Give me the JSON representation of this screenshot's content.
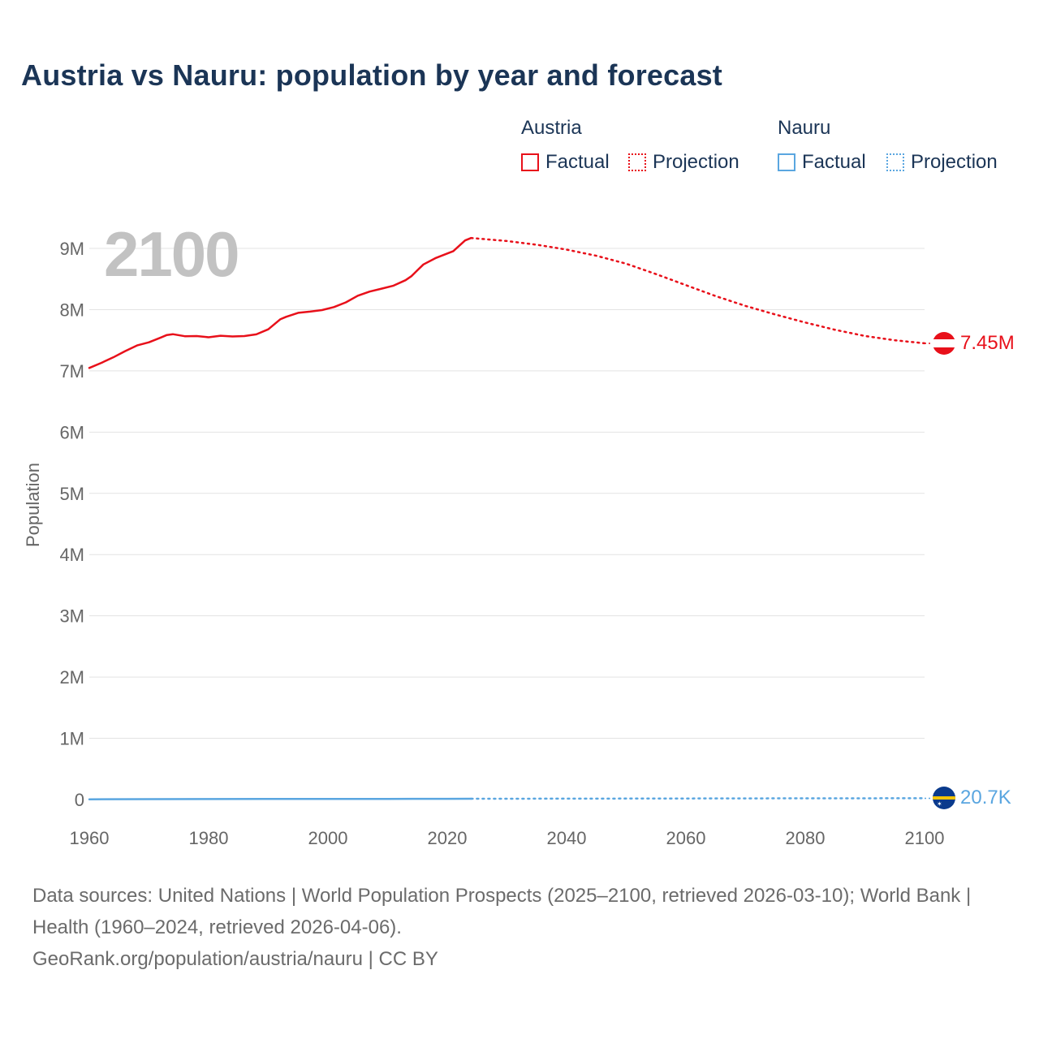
{
  "title": "Austria vs Nauru: population by year and forecast",
  "current_year": "2100",
  "legend": {
    "groups": [
      {
        "name": "Austria",
        "color": "#e8101a",
        "factual_label": "Factual",
        "projection_label": "Projection"
      },
      {
        "name": "Nauru",
        "color": "#5aa6e0",
        "factual_label": "Factual",
        "projection_label": "Projection"
      }
    ]
  },
  "footer": {
    "sources": "Data sources: United Nations | World Population Prospects (2025–2100, retrieved 2026-03-10); World Bank | Health (1960–2024, retrieved 2026-04-06).",
    "attribution": "GeoRank.org/population/austria/nauru | CC BY"
  },
  "chart_data": {
    "type": "line",
    "title": "Austria vs Nauru: population by year and forecast",
    "xlabel": "",
    "ylabel": "Population",
    "xlim": [
      1960,
      2100
    ],
    "ylim": [
      0,
      9500000
    ],
    "x_ticks": [
      1960,
      1980,
      2000,
      2020,
      2040,
      2060,
      2080,
      2100
    ],
    "x_tick_labels": [
      "1960",
      "1980",
      "2000",
      "2020",
      "2040",
      "2060",
      "2080",
      "2100"
    ],
    "y_ticks": [
      0,
      1000000,
      2000000,
      3000000,
      4000000,
      5000000,
      6000000,
      7000000,
      8000000,
      9000000
    ],
    "y_tick_labels": [
      "0",
      "1M",
      "2M",
      "3M",
      "4M",
      "5M",
      "6M",
      "7M",
      "8M",
      "9M"
    ],
    "grid": true,
    "series": [
      {
        "name": "Austria",
        "kind": "factual",
        "color": "#e8101a",
        "x": [
          1960,
          1962,
          1964,
          1966,
          1968,
          1970,
          1972,
          1973,
          1974,
          1976,
          1978,
          1980,
          1982,
          1984,
          1986,
          1988,
          1990,
          1992,
          1993,
          1995,
          1997,
          1999,
          2001,
          2003,
          2005,
          2007,
          2009,
          2011,
          2013,
          2014,
          2015,
          2016,
          2018,
          2020,
          2021,
          2022,
          2023,
          2024
        ],
        "values": [
          7047000,
          7130000,
          7220000,
          7322000,
          7415000,
          7467000,
          7544000,
          7586000,
          7599000,
          7566000,
          7568000,
          7549000,
          7574000,
          7562000,
          7568000,
          7596000,
          7678000,
          7841000,
          7883000,
          7948000,
          7968000,
          7992000,
          8042000,
          8118000,
          8227000,
          8295000,
          8343000,
          8392000,
          8480000,
          8547000,
          8643000,
          8737000,
          8840000,
          8917000,
          8955000,
          9042000,
          9130000,
          9170000
        ]
      },
      {
        "name": "Austria",
        "kind": "projection",
        "color": "#e8101a",
        "x": [
          2024,
          2030,
          2035,
          2040,
          2045,
          2050,
          2055,
          2060,
          2065,
          2070,
          2075,
          2080,
          2085,
          2090,
          2095,
          2100
        ],
        "values": [
          9170000,
          9120000,
          9060000,
          8980000,
          8880000,
          8750000,
          8580000,
          8400000,
          8220000,
          8060000,
          7920000,
          7790000,
          7670000,
          7570000,
          7500000,
          7450000
        ]
      },
      {
        "name": "Nauru",
        "kind": "factual",
        "color": "#5aa6e0",
        "x": [
          1960,
          1970,
          1980,
          1990,
          2000,
          2010,
          2020,
          2024
        ],
        "values": [
          4400,
          6700,
          7600,
          9600,
          10400,
          10200,
          12300,
          12700
        ]
      },
      {
        "name": "Nauru",
        "kind": "projection",
        "color": "#5aa6e0",
        "x": [
          2024,
          2040,
          2060,
          2080,
          2100
        ],
        "values": [
          12700,
          15000,
          17500,
          19400,
          20700
        ]
      }
    ],
    "end_labels": [
      {
        "name": "Austria",
        "value": 7450000,
        "text": "7.45M",
        "color": "#e8101a"
      },
      {
        "name": "Nauru",
        "value": 20700,
        "text": "20.7K",
        "color": "#5aa6e0"
      }
    ]
  }
}
